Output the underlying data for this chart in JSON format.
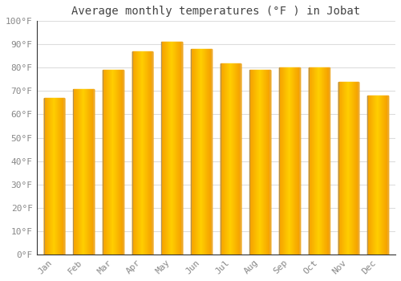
{
  "title": "Average monthly temperatures (°F ) in Jobat",
  "months": [
    "Jan",
    "Feb",
    "Mar",
    "Apr",
    "May",
    "Jun",
    "Jul",
    "Aug",
    "Sep",
    "Oct",
    "Nov",
    "Dec"
  ],
  "values": [
    67,
    71,
    79,
    87,
    91,
    88,
    82,
    79,
    80,
    80,
    74,
    68
  ],
  "bar_color_center": "#FFD000",
  "bar_color_edge": "#F5A000",
  "ylim": [
    0,
    100
  ],
  "yticks": [
    0,
    10,
    20,
    30,
    40,
    50,
    60,
    70,
    80,
    90,
    100
  ],
  "ytick_labels": [
    "0°F",
    "10°F",
    "20°F",
    "30°F",
    "40°F",
    "50°F",
    "60°F",
    "70°F",
    "80°F",
    "90°F",
    "100°F"
  ],
  "background_color": "#ffffff",
  "grid_color": "#dddddd",
  "title_fontsize": 10,
  "tick_fontsize": 8,
  "font_family": "monospace",
  "bar_width": 0.7,
  "spine_color": "#333333",
  "tick_color": "#888888"
}
